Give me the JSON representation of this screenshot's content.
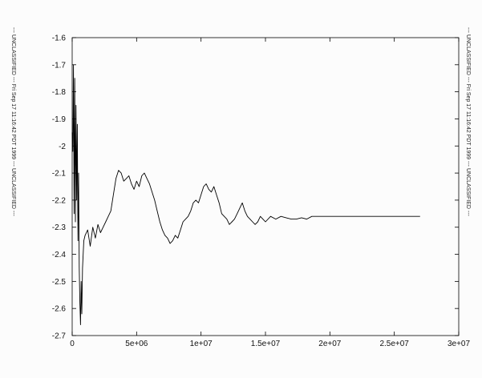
{
  "margin_text_left": "--- UNCLASSIFIED --- Fri Sep 17 11:16:42 PDT 1999 --- UNCLASSIFIED ---",
  "margin_text_right": "--- UNCLASSIFIED --- Fri Sep 17 11:16:42 PDT 1999 --- UNCLASSIFIED ---",
  "chart_data": {
    "type": "line",
    "title": "",
    "xlabel": "",
    "ylabel": "",
    "xlim": [
      0,
      30000000
    ],
    "ylim": [
      -2.7,
      -1.6
    ],
    "grid": false,
    "legend": "none",
    "line_color": "#000000",
    "x_ticks": [
      0,
      5000000,
      10000000,
      15000000,
      20000000,
      25000000,
      30000000
    ],
    "x_tick_labels": [
      "0",
      "5e+06",
      "1e+07",
      "1.5e+07",
      "2e+07",
      "2.5e+07",
      "3e+07"
    ],
    "y_ticks": [
      -1.6,
      -1.7,
      -1.8,
      -1.9,
      -2.0,
      -2.1,
      -2.2,
      -2.3,
      -2.4,
      -2.5,
      -2.6,
      -2.7
    ],
    "y_tick_labels": [
      "-1.6",
      "-1.7",
      "-1.8",
      "-1.9",
      "-2",
      "-2.1",
      "-2.2",
      "-2.3",
      "-2.4",
      "-2.5",
      "-2.6",
      "-2.7"
    ],
    "series": [
      {
        "x": [
          0,
          50000,
          100000,
          150000,
          200000,
          250000,
          300000,
          350000,
          400000,
          450000,
          500000,
          550000,
          600000,
          650000,
          700000,
          750000,
          800000,
          900000,
          1000000,
          1200000,
          1400000,
          1600000,
          1800000,
          2000000,
          2200000,
          2400000,
          2600000,
          2800000,
          3000000,
          3200000,
          3400000,
          3600000,
          3800000,
          4000000,
          4200000,
          4400000,
          4600000,
          4800000,
          5000000,
          5200000,
          5400000,
          5600000,
          5800000,
          6000000,
          6200000,
          6400000,
          6600000,
          6800000,
          7000000,
          7200000,
          7400000,
          7600000,
          7800000,
          8000000,
          8200000,
          8400000,
          8600000,
          8800000,
          9000000,
          9200000,
          9400000,
          9600000,
          9800000,
          10000000,
          10200000,
          10400000,
          10600000,
          10800000,
          11000000,
          11200000,
          11400000,
          11600000,
          11800000,
          12000000,
          12200000,
          12400000,
          12600000,
          12800000,
          13000000,
          13200000,
          13400000,
          13600000,
          13800000,
          14000000,
          14200000,
          14400000,
          14600000,
          14800000,
          15000000,
          15400000,
          15800000,
          16200000,
          16600000,
          17000000,
          17400000,
          17800000,
          18200000,
          18600000,
          19000000,
          20000000,
          21000000,
          22000000,
          23000000,
          24000000,
          25000000,
          26000000,
          27000000
        ],
        "y": [
          -1.95,
          -2.02,
          -1.7,
          -2.25,
          -1.75,
          -2.28,
          -1.85,
          -2.2,
          -1.92,
          -2.35,
          -2.1,
          -2.45,
          -2.58,
          -2.66,
          -2.5,
          -2.62,
          -2.45,
          -2.35,
          -2.33,
          -2.31,
          -2.37,
          -2.3,
          -2.34,
          -2.29,
          -2.32,
          -2.3,
          -2.28,
          -2.26,
          -2.24,
          -2.18,
          -2.12,
          -2.09,
          -2.1,
          -2.13,
          -2.12,
          -2.11,
          -2.14,
          -2.16,
          -2.13,
          -2.15,
          -2.11,
          -2.1,
          -2.12,
          -2.14,
          -2.17,
          -2.2,
          -2.24,
          -2.28,
          -2.31,
          -2.33,
          -2.34,
          -2.36,
          -2.35,
          -2.33,
          -2.34,
          -2.31,
          -2.28,
          -2.27,
          -2.26,
          -2.24,
          -2.21,
          -2.2,
          -2.21,
          -2.18,
          -2.15,
          -2.14,
          -2.16,
          -2.17,
          -2.15,
          -2.18,
          -2.21,
          -2.25,
          -2.26,
          -2.27,
          -2.29,
          -2.28,
          -2.27,
          -2.25,
          -2.23,
          -2.21,
          -2.24,
          -2.26,
          -2.27,
          -2.28,
          -2.29,
          -2.28,
          -2.26,
          -2.27,
          -2.28,
          -2.26,
          -2.27,
          -2.26,
          -2.265,
          -2.27,
          -2.27,
          -2.265,
          -2.27,
          -2.26,
          -2.26,
          -2.26,
          -2.26,
          -2.26,
          -2.26,
          -2.26,
          -2.26,
          -2.26,
          -2.26
        ]
      }
    ]
  }
}
